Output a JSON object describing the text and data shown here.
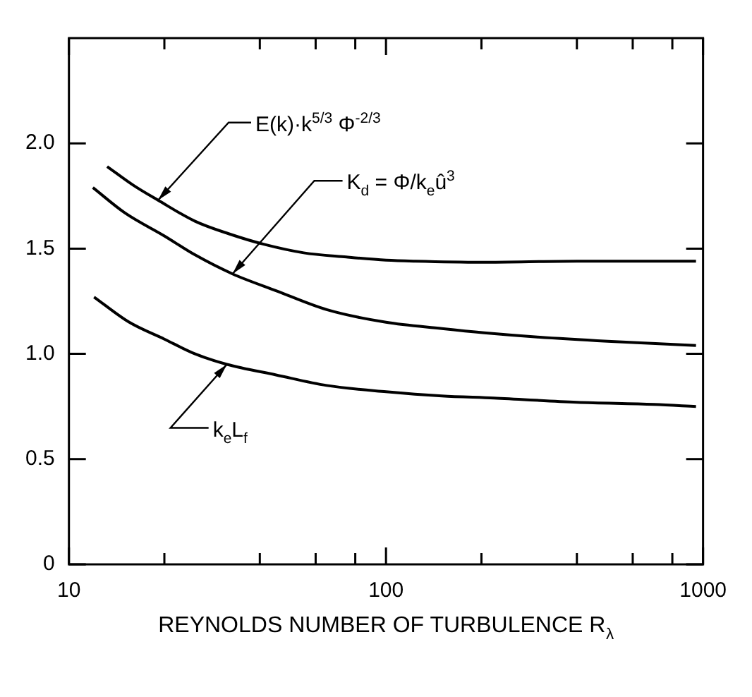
{
  "chart_data": {
    "type": "line",
    "xlabel": "REYNOLDS NUMBER OF TURBULENCE R$_{λ}$",
    "log": "x",
    "xlim": [
      10,
      1000
    ],
    "xticks": [
      10,
      {
        "value": 20,
        "label": null
      },
      {
        "value": 40,
        "label": null
      },
      {
        "value": 60,
        "label": null
      },
      {
        "value": 80,
        "label": null
      },
      100,
      {
        "value": 200,
        "label": null
      },
      {
        "value": 400,
        "label": null
      },
      {
        "value": 600,
        "label": null
      },
      {
        "value": 800,
        "label": null
      },
      1000
    ],
    "ylim": [
      0,
      2.5
    ],
    "yticks": [
      0,
      0.5,
      {
        "value": 1,
        "label": "1.0"
      },
      1.5,
      {
        "value": 2,
        "label": "2.0"
      }
    ],
    "grid": false,
    "legend": false,
    "marker": "none",
    "line_style": "solid",
    "series": [
      {
        "color": "#000000",
        "x": [
          13.2,
          16,
          19.1,
          25,
          32,
          41.3,
          55,
          75,
          100,
          124,
          200,
          400,
          700,
          950
        ],
        "values": [
          1.89,
          1.8,
          1.73,
          1.63,
          1.57,
          1.52,
          1.48,
          1.46,
          1.445,
          1.44,
          1.435,
          1.44,
          1.44,
          1.44
        ]
      },
      {
        "color": "#000000",
        "x": [
          11.9,
          15,
          20,
          25,
          32.8,
          45,
          65,
          100,
          150,
          204,
          300,
          500,
          950
        ],
        "values": [
          1.79,
          1.67,
          1.56,
          1.47,
          1.38,
          1.3,
          1.21,
          1.15,
          1.12,
          1.1,
          1.08,
          1.06,
          1.04
        ]
      },
      {
        "color": "#000000",
        "x": [
          12,
          15.5,
          20,
          25,
          31.5,
          45,
          65,
          100,
          150,
          219,
          400,
          700,
          950
        ],
        "values": [
          1.27,
          1.15,
          1.07,
          1.0,
          0.95,
          0.9,
          0.85,
          0.82,
          0.8,
          0.79,
          0.77,
          0.76,
          0.75
        ]
      }
    ],
    "annotations": [
      {
        "text": "E(k)·k$^{5/3}$ Φ$^{-2/3}$",
        "x": 19.1,
        "y": 1.73
      },
      {
        "text": "K$_{d}$ = Φ/k$_{e}$û$^{3}$",
        "x": 32.8,
        "y": 1.38
      },
      {
        "text": "k$_{e}$L$_{f}$",
        "x": 31.5,
        "y": 0.95
      }
    ]
  }
}
